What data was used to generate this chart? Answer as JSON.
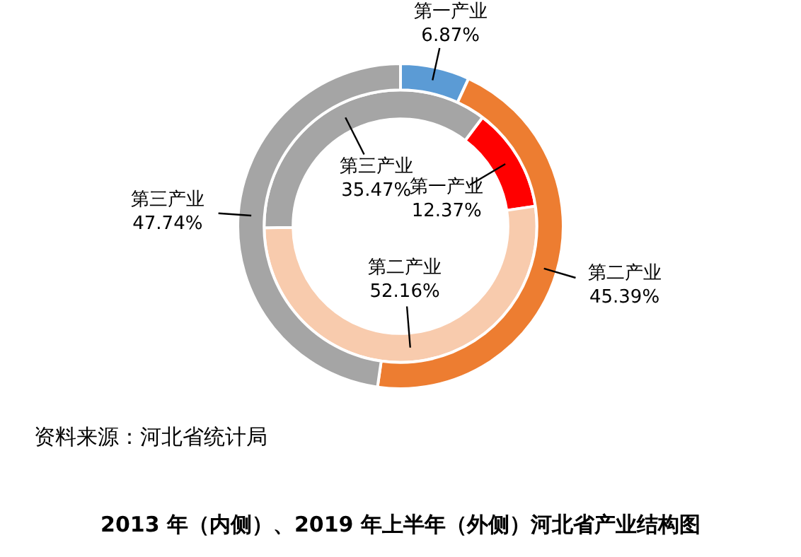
{
  "chart_data": {
    "type": "donut",
    "title": "2013 年（内侧）、2019 年上半年（外侧）河北省产业结构图",
    "categories": [
      "第一产业",
      "第二产业",
      "第三产业"
    ],
    "series": [
      {
        "values": [
          6.87,
          45.39,
          47.74
        ],
        "colors": [
          "#5b9bd5",
          "#ed7d31",
          "#a5a5a5"
        ],
        "value_labels": [
          "6.87%",
          "45.39%",
          "47.74%"
        ]
      },
      {
        "values": [
          12.37,
          52.16,
          35.47
        ],
        "colors": [
          "#ff0000",
          "#f8cbad",
          "#a5a5a5"
        ],
        "value_labels": [
          "12.37%",
          "52.16%",
          "35.47%"
        ]
      }
    ],
    "annotations": [
      "资料来源：河北省统计局"
    ],
    "legend": false
  }
}
